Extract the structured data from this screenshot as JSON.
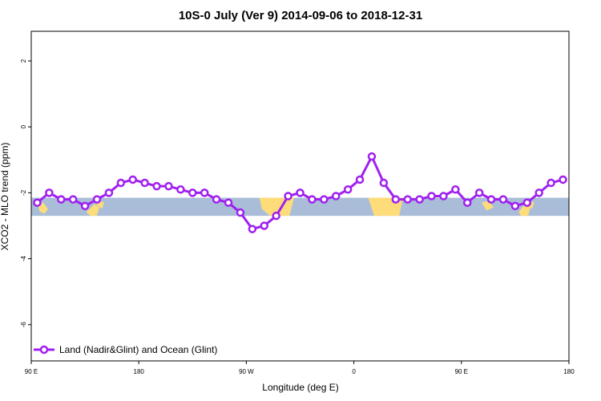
{
  "chart_data": {
    "type": "line",
    "title": "10S-0 July (Ver 9)   2014-09-06 to 2018-12-31",
    "xlabel": "Longitude (deg E)",
    "ylabel": "XCO2 - MLO trend (ppm)",
    "xticks": [
      "90 E",
      "180",
      "90 W",
      "0",
      "90 E",
      "180"
    ],
    "xlim": [
      0,
      450
    ],
    "yticks": [
      "2",
      "0",
      "-2",
      "-4",
      "-6"
    ],
    "ytick_values": [
      2,
      0,
      -2,
      -4,
      -6
    ],
    "ylim": [
      -7.1,
      2.9
    ],
    "legend": {
      "position": "bottom-left",
      "label": "Land (Nadir&Glint) and Ocean (Glint)"
    },
    "series": [
      {
        "color": "#a020f0",
        "x": [
          5,
          15,
          25,
          35,
          45,
          55,
          65,
          75,
          85,
          95,
          105,
          115,
          125,
          135,
          145,
          155,
          165,
          175,
          185,
          195,
          205,
          215,
          225,
          235,
          245,
          255,
          265,
          275,
          285,
          295,
          305,
          315,
          325,
          335,
          345,
          355,
          365,
          375,
          385,
          395,
          405,
          415,
          425,
          435,
          445
        ],
        "y": [
          -2.3,
          -2.0,
          -2.2,
          -2.2,
          -2.4,
          -2.2,
          -2.0,
          -1.7,
          -1.6,
          -1.7,
          -1.8,
          -1.8,
          -1.9,
          -2.0,
          -2.0,
          -2.2,
          -2.3,
          -2.6,
          -3.1,
          -3.0,
          -2.7,
          -2.1,
          -2.0,
          -2.2,
          -2.2,
          -2.1,
          -1.9,
          -1.6,
          -0.9,
          -1.7,
          -2.2,
          -2.2,
          -2.2,
          -2.1,
          -2.1,
          -1.9,
          -2.3,
          -2.0,
          -2.2,
          -2.2,
          -2.4,
          -2.3,
          -2.0,
          -1.7,
          -1.6
        ]
      }
    ],
    "background_band": {
      "y_range": [
        -2.15,
        -2.7
      ],
      "ocean_color": "#a9bdd8",
      "land_color": "#ffdc7a"
    }
  }
}
